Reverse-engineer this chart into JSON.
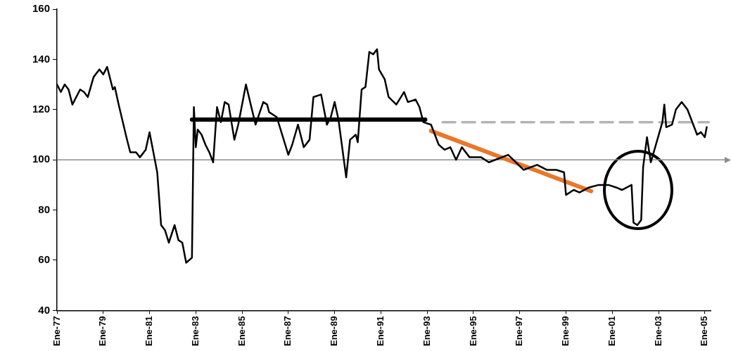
{
  "chart_data": {
    "type": "line",
    "xlim": [
      "1977-01",
      "2005-04"
    ],
    "ylim": [
      40,
      160
    ],
    "xticks": [
      {
        "value": "1977-01",
        "label": "Ene-77"
      },
      {
        "value": "1979-01",
        "label": "Ene-79"
      },
      {
        "value": "1981-01",
        "label": "Ene-81"
      },
      {
        "value": "1983-01",
        "label": "Ene-83"
      },
      {
        "value": "1985-01",
        "label": "Ene-85"
      },
      {
        "value": "1987-01",
        "label": "Ene-87"
      },
      {
        "value": "1989-01",
        "label": "Ene-89"
      },
      {
        "value": "1991-01",
        "label": "Ene-91"
      },
      {
        "value": "1993-01",
        "label": "Ene-93"
      },
      {
        "value": "1995-01",
        "label": "Ene-95"
      },
      {
        "value": "1997-01",
        "label": "Ene-97"
      },
      {
        "value": "1999-01",
        "label": "Ene-99"
      },
      {
        "value": "2001-01",
        "label": "Ene-01"
      },
      {
        "value": "2003-01",
        "label": "Ene-03"
      },
      {
        "value": "2005-01",
        "label": "Ene-05"
      }
    ],
    "yticks": [
      40,
      60,
      80,
      100,
      120,
      140,
      160
    ],
    "grid": false,
    "legend": false,
    "marker": "none",
    "ref_lines": [
      {
        "axis": "y",
        "value": 100,
        "color": "#8c8c8c"
      }
    ],
    "series": [
      {
        "color": "#000000",
        "x": [
          "1977-01",
          "1977-03",
          "1977-05",
          "1977-07",
          "1977-09",
          "1978-01",
          "1978-03",
          "1978-05",
          "1978-08",
          "1978-11",
          "1979-01",
          "1979-03",
          "1979-06",
          "1979-07",
          "1979-09",
          "1980-01",
          "1980-03",
          "1980-06",
          "1980-08",
          "1980-11",
          "1981-01",
          "1981-03",
          "1981-05",
          "1981-07",
          "1981-09",
          "1981-11",
          "1982-02",
          "1982-04",
          "1982-06",
          "1982-08",
          "1982-11",
          "1982-12",
          "1983-01",
          "1983-02",
          "1983-04",
          "1983-06",
          "1983-08",
          "1983-10",
          "1983-12",
          "1984-02",
          "1984-04",
          "1984-06",
          "1984-09",
          "1984-11",
          "1985-01",
          "1985-03",
          "1985-08",
          "1985-12",
          "1986-02",
          "1986-03",
          "1986-07",
          "1987-01",
          "1987-03",
          "1987-06",
          "1987-09",
          "1987-12",
          "1988-02",
          "1988-06",
          "1988-09",
          "1988-11",
          "1989-01",
          "1989-03",
          "1989-07",
          "1989-09",
          "1989-12",
          "1990-01",
          "1990-03",
          "1990-05",
          "1990-07",
          "1990-09",
          "1990-11",
          "1990-12",
          "1991-03",
          "1991-05",
          "1991-09",
          "1992-01",
          "1992-03",
          "1992-07",
          "1992-09",
          "1992-11",
          "1993-03",
          "1993-07",
          "1993-10",
          "1994-01",
          "1994-04",
          "1994-07",
          "1994-11",
          "1995-05",
          "1995-09",
          "1996-07",
          "1997-03",
          "1997-10",
          "1998-03",
          "1998-08",
          "1998-12",
          "1999-01",
          "1999-05",
          "1999-08",
          "2000-01",
          "2000-06",
          "2000-11",
          "2001-03",
          "2001-06",
          "2001-11",
          "2001-12",
          "2002-02",
          "2002-04",
          "2002-05",
          "2002-07",
          "2002-09",
          "2002-12",
          "2003-03",
          "2003-04",
          "2003-05",
          "2003-08",
          "2003-10",
          "2004-01",
          "2004-04",
          "2004-06",
          "2004-09",
          "2004-11",
          "2005-01",
          "2005-02"
        ],
        "values": [
          130,
          127,
          130,
          128,
          122,
          128,
          127,
          125,
          133,
          136,
          134,
          137,
          128,
          129,
          122,
          109,
          103,
          103,
          101,
          104,
          111,
          103,
          95,
          74,
          72,
          67,
          74,
          68,
          67,
          59,
          61,
          121,
          105,
          112,
          110,
          106,
          103,
          99,
          121,
          115,
          123,
          122,
          108,
          114,
          122,
          130,
          114,
          123,
          122,
          119,
          117,
          102,
          106,
          114,
          105,
          108,
          125,
          126,
          114,
          117,
          123,
          116,
          93,
          108,
          110,
          107,
          128,
          129,
          143,
          142,
          144,
          136,
          132,
          125,
          122,
          127,
          123,
          124,
          121,
          115,
          114,
          106,
          104,
          105,
          100,
          105,
          101,
          101,
          99,
          102,
          96,
          98,
          96,
          96,
          95,
          86,
          88,
          87,
          89,
          90,
          90,
          89,
          88,
          90,
          75,
          74,
          76,
          97,
          109,
          99,
          107,
          115,
          122,
          113,
          114,
          120,
          123,
          120,
          116,
          110,
          111,
          109,
          113
        ]
      },
      {
        "color": "#000000",
        "x": [
          "1982-11",
          "1992-12"
        ],
        "values": [
          116,
          116
        ]
      },
      {
        "color": "#e8782a",
        "x": [
          "1993-03",
          "2000-02"
        ],
        "values": [
          111.5,
          87.5
        ]
      },
      {
        "color": "#b4b4b4",
        "x": [
          "1993-09",
          "2005-03"
        ],
        "values": [
          115,
          115
        ],
        "line_style": "dashed"
      }
    ]
  }
}
